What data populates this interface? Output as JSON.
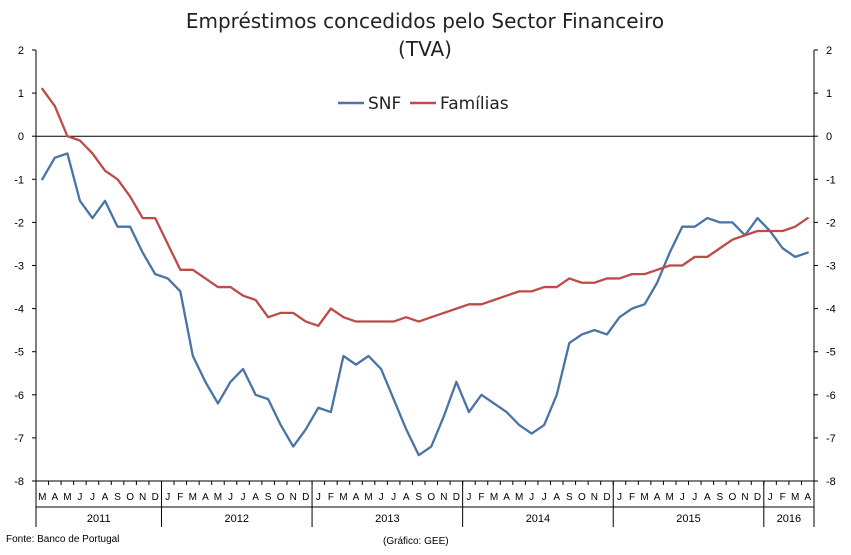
{
  "chart_data": {
    "type": "line",
    "title": "Empréstimos concedidos pelo Sector Financeiro",
    "subtitle": "(TVA)",
    "ylim": [
      -8,
      2
    ],
    "yticks": [
      2,
      1,
      0,
      -1,
      -2,
      -3,
      -4,
      -5,
      -6,
      -7,
      -8
    ],
    "grid": false,
    "legend_position": "top-center",
    "months": [
      "M",
      "A",
      "M",
      "J",
      "J",
      "A",
      "S",
      "O",
      "N",
      "D",
      "J",
      "F",
      "M",
      "A",
      "M",
      "J",
      "J",
      "A",
      "S",
      "O",
      "N",
      "D",
      "J",
      "F",
      "M",
      "A",
      "M",
      "J",
      "J",
      "A",
      "S",
      "O",
      "N",
      "D",
      "J",
      "F",
      "M",
      "A",
      "M",
      "J",
      "J",
      "A",
      "S",
      "O",
      "N",
      "D",
      "J",
      "F",
      "M",
      "A",
      "M",
      "J",
      "J",
      "A",
      "S",
      "O",
      "N",
      "D",
      "J",
      "F",
      "M",
      "A"
    ],
    "years": [
      {
        "label": "2011",
        "start": 0,
        "count": 10
      },
      {
        "label": "2012",
        "start": 10,
        "count": 12
      },
      {
        "label": "2013",
        "start": 22,
        "count": 12
      },
      {
        "label": "2014",
        "start": 34,
        "count": 12
      },
      {
        "label": "2015",
        "start": 46,
        "count": 12
      },
      {
        "label": "2016",
        "start": 58,
        "count": 4
      }
    ],
    "series": [
      {
        "name": "SNF",
        "color": "#4a73a6",
        "values": [
          -1.0,
          -0.5,
          -0.4,
          -1.5,
          -1.9,
          -1.5,
          -2.1,
          -2.1,
          -2.7,
          -3.2,
          -3.3,
          -3.6,
          -5.1,
          -5.7,
          -6.2,
          -5.7,
          -5.4,
          -6.0,
          -6.1,
          -6.7,
          -7.2,
          -6.8,
          -6.3,
          -6.4,
          -5.1,
          -5.3,
          -5.1,
          -5.4,
          -6.1,
          -6.8,
          -7.4,
          -7.2,
          -6.5,
          -5.7,
          -6.4,
          -6.0,
          -6.2,
          -6.4,
          -6.7,
          -6.9,
          -6.7,
          -6.0,
          -4.8,
          -4.6,
          -4.5,
          -4.6,
          -4.2,
          -4.0,
          -3.9,
          -3.4,
          -2.7,
          -2.1,
          -2.1,
          -1.9,
          -2.0,
          -2.0,
          -2.3,
          -1.9,
          -2.2,
          -2.6,
          -2.8,
          -2.7
        ]
      },
      {
        "name": "Famílias",
        "color": "#be4b48",
        "values": [
          1.1,
          0.7,
          0.0,
          -0.1,
          -0.4,
          -0.8,
          -1.0,
          -1.4,
          -1.9,
          -1.9,
          -2.5,
          -3.1,
          -3.1,
          -3.3,
          -3.5,
          -3.5,
          -3.7,
          -3.8,
          -4.2,
          -4.1,
          -4.1,
          -4.3,
          -4.4,
          -4.0,
          -4.2,
          -4.3,
          -4.3,
          -4.3,
          -4.3,
          -4.2,
          -4.3,
          -4.2,
          -4.1,
          -4.0,
          -3.9,
          -3.9,
          -3.8,
          -3.7,
          -3.6,
          -3.6,
          -3.5,
          -3.5,
          -3.3,
          -3.4,
          -3.4,
          -3.3,
          -3.3,
          -3.2,
          -3.2,
          -3.1,
          -3.0,
          -3.0,
          -2.8,
          -2.8,
          -2.6,
          -2.4,
          -2.3,
          -2.2,
          -2.2,
          -2.2,
          -2.1,
          -1.9
        ]
      }
    ],
    "source_note": "Fonte: Banco de Portugal",
    "credit_note": "(Gráfico: GEE)"
  }
}
